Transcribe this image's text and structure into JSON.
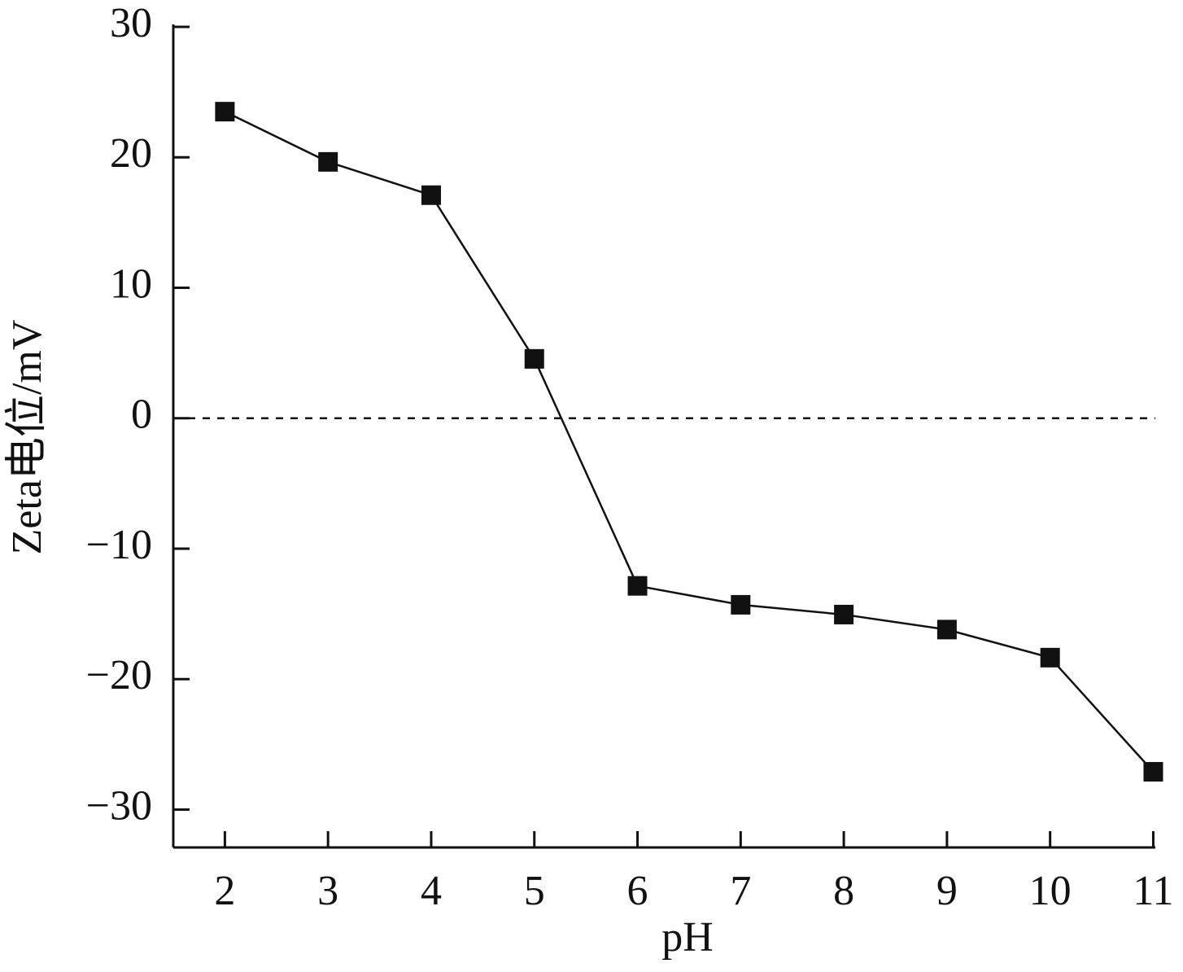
{
  "chart_data": {
    "type": "line",
    "x_label": "pH",
    "y_label": "Zeta电位/mV",
    "x": [
      2,
      3,
      4,
      5,
      6,
      7,
      8,
      9,
      10,
      11
    ],
    "series": [
      {
        "color": "#111111",
        "marker": "square",
        "values": [
          23.5,
          19.65,
          17.1,
          4.55,
          -12.85,
          -14.3,
          -15.05,
          -16.2,
          -18.35,
          -27.1
        ]
      }
    ],
    "xlim": [
      1.5,
      11.02
    ],
    "xticks": [
      2,
      3,
      4,
      5,
      6,
      7,
      8,
      9,
      10,
      11
    ],
    "ylim": [
      -32.9,
      30
    ],
    "yticks": [
      {
        "value": -30,
        "label": "−30"
      },
      {
        "value": -20,
        "label": "−20"
      },
      {
        "value": -10,
        "label": "−10"
      },
      0,
      10,
      20,
      30
    ],
    "hline": {
      "y": 0,
      "style": "dashed"
    }
  }
}
